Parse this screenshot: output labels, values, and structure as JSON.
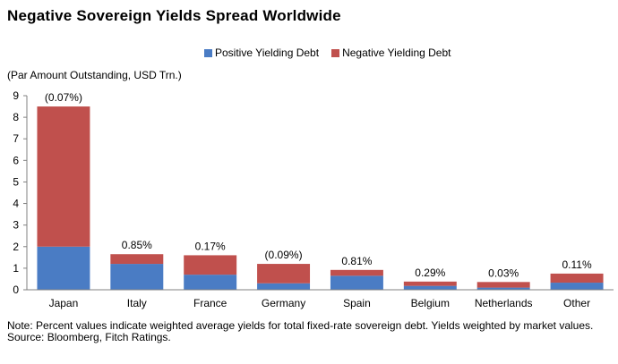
{
  "chart_data": {
    "type": "bar",
    "stacked": true,
    "title": "Negative Sovereign Yields Spread Worldwide",
    "ylabel": "(Par Amount Outstanding, USD Trn.)",
    "ylim": [
      0,
      9
    ],
    "yticks": [
      "0",
      "1",
      "2",
      "3",
      "4",
      "5",
      "6",
      "7",
      "8",
      "9"
    ],
    "categories": [
      "Japan",
      "Italy",
      "France",
      "Germany",
      "Spain",
      "Belgium",
      "Netherlands",
      "Other"
    ],
    "series": [
      {
        "name": "Positive Yielding Debt",
        "color": "#4a7cc4",
        "values": [
          2.0,
          1.2,
          0.7,
          0.3,
          0.65,
          0.18,
          0.1,
          0.33
        ]
      },
      {
        "name": "Negative Yielding Debt",
        "color": "#c0504d",
        "values": [
          6.5,
          0.45,
          0.9,
          0.9,
          0.27,
          0.2,
          0.26,
          0.42
        ]
      }
    ],
    "annotations": [
      "(0.07%)",
      "0.85%",
      "0.17%",
      "(0.09%)",
      "0.81%",
      "0.29%",
      "0.03%",
      "0.11%"
    ],
    "legend_position": "top"
  },
  "note": {
    "line1": "Note: Percent values indicate weighted average yields for total fixed-rate sovereign debt. Yields weighted by market values.",
    "line2": "Source: Bloomberg, Fitch Ratings."
  }
}
